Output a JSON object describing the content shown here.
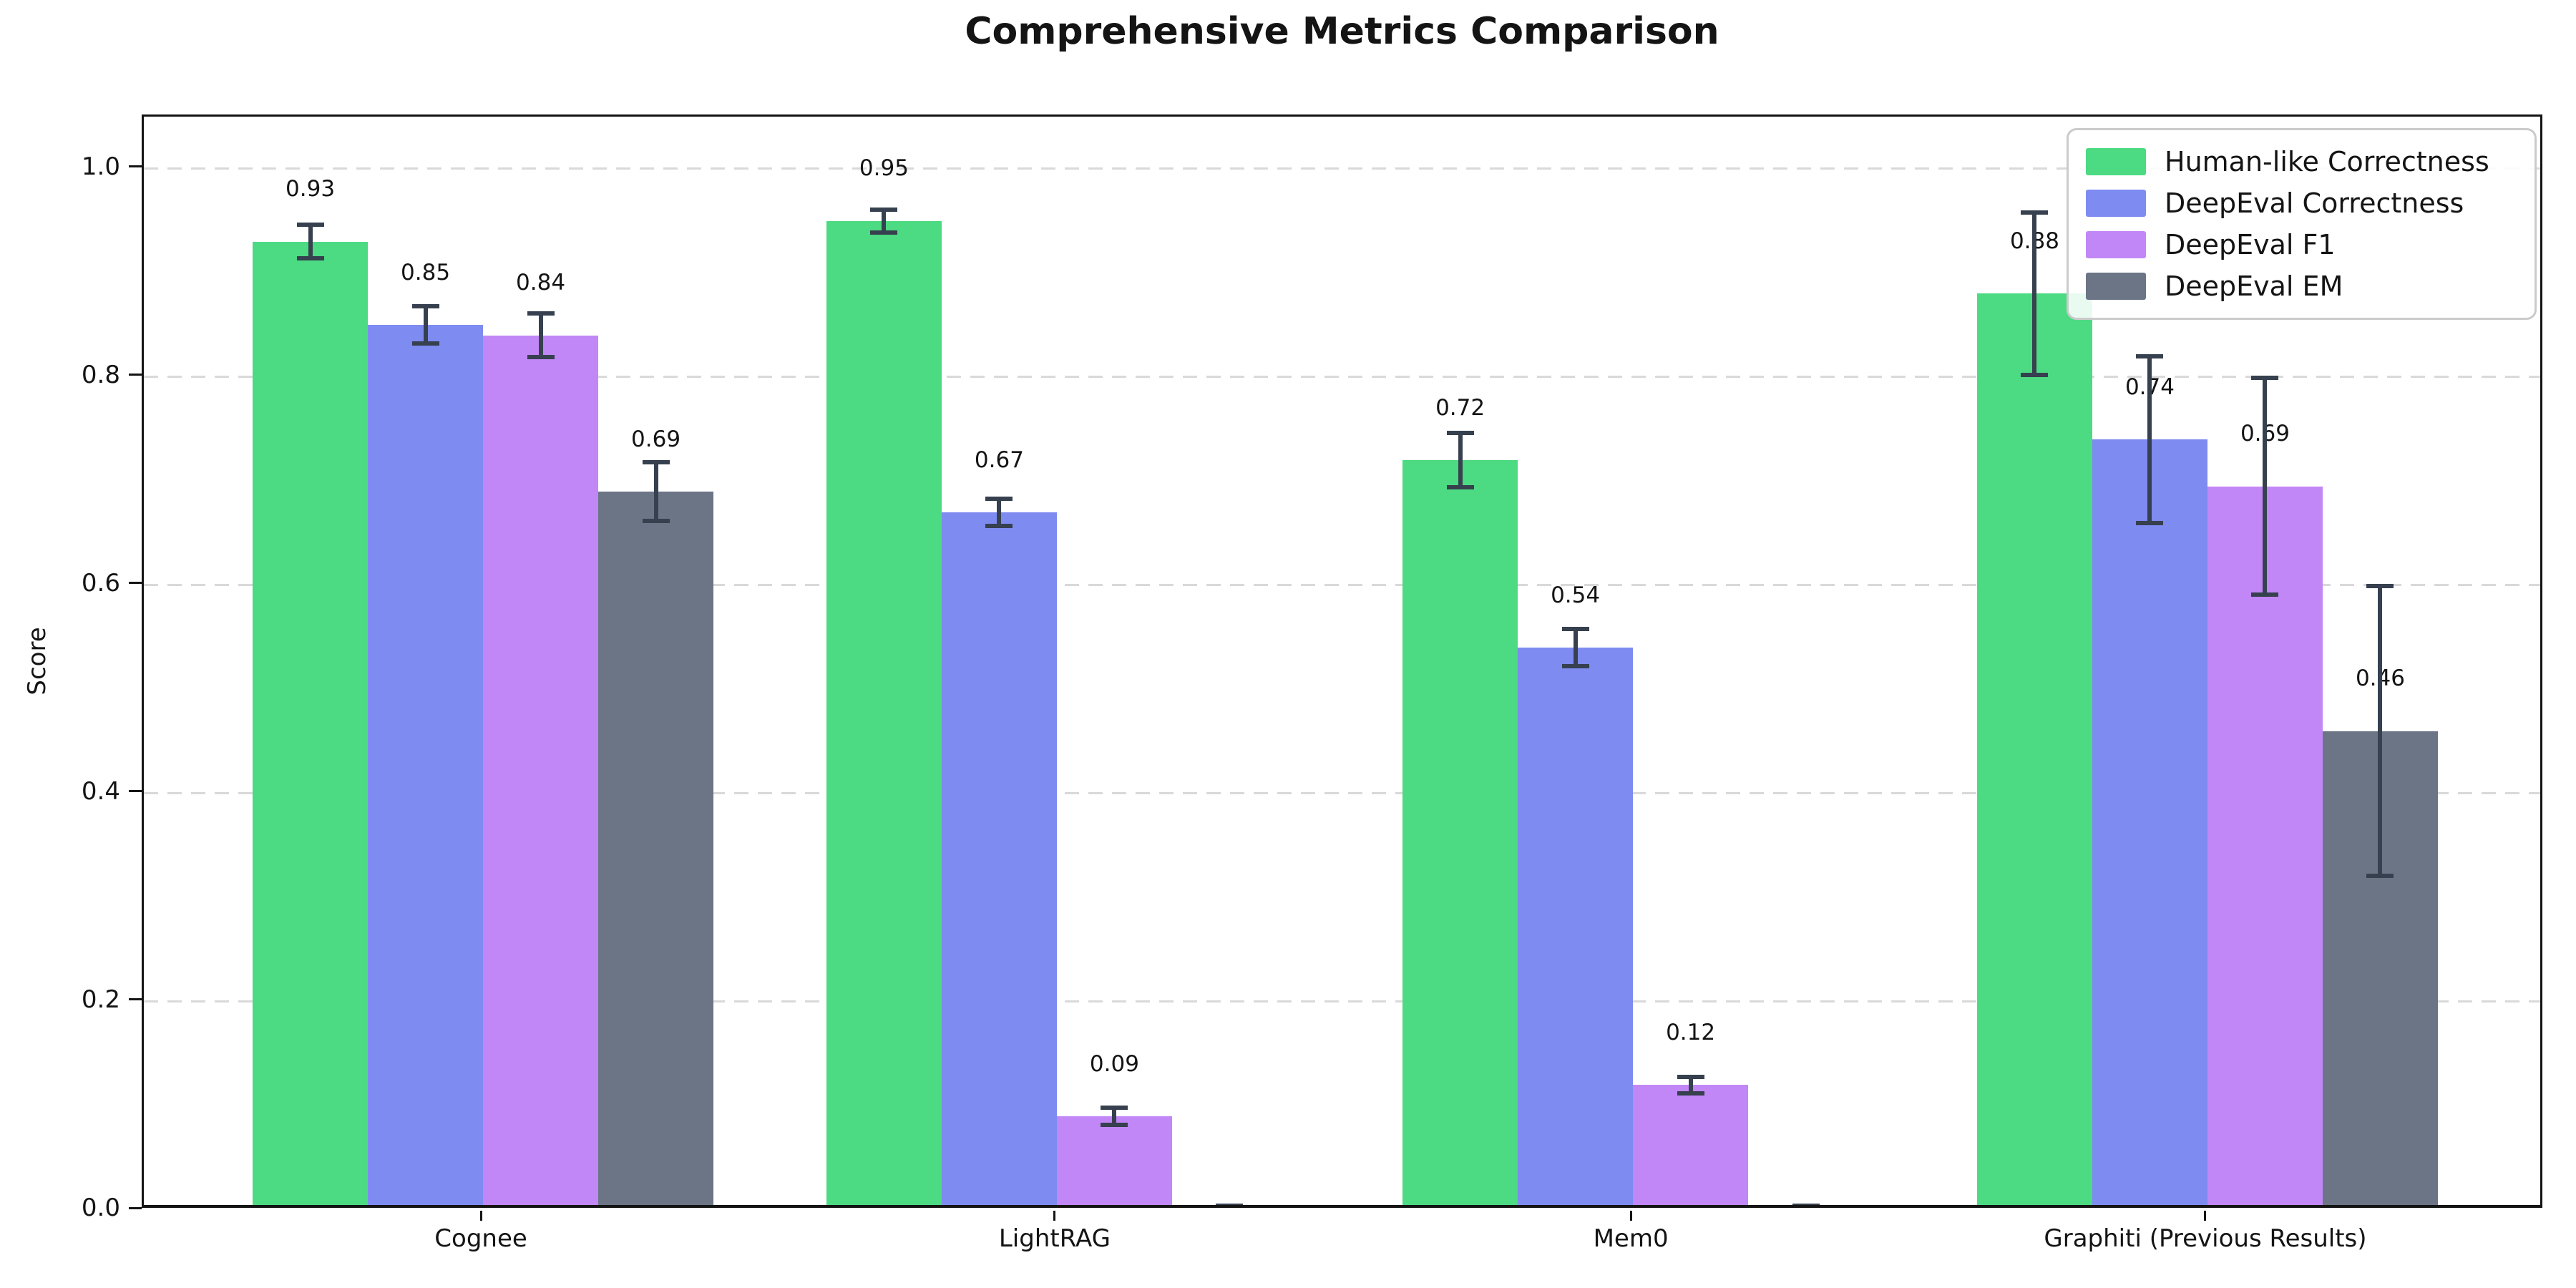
{
  "chart_data": {
    "type": "bar",
    "title": "Comprehensive Metrics Comparison",
    "xlabel": "",
    "ylabel": "Score",
    "ylim": [
      0,
      1.05
    ],
    "yticks": [
      "0.0",
      "0.2",
      "0.4",
      "0.6",
      "0.8",
      "1.0"
    ],
    "grid": "horizontal-dashed",
    "legend_position": "upper-right",
    "categories": [
      "Cognee",
      "LightRAG",
      "Mem0",
      "Graphiti (Previous Results)"
    ],
    "series": [
      {
        "name": "Human-like Correctness",
        "color": "#4cda82",
        "values": [
          0.93,
          0.95,
          0.72,
          0.88
        ],
        "errors": [
          0.016,
          0.011,
          0.026,
          0.078
        ],
        "labels": [
          "0.93",
          "0.95",
          "0.72",
          "0.88"
        ]
      },
      {
        "name": "DeepEval Correctness",
        "color": "#7e8bf1",
        "values": [
          0.85,
          0.67,
          0.54,
          0.74
        ],
        "errors": [
          0.018,
          0.013,
          0.018,
          0.08
        ],
        "labels": [
          "0.85",
          "0.67",
          "0.54",
          "0.74"
        ]
      },
      {
        "name": "DeepEval F1",
        "color": "#c287f6",
        "values": [
          0.84,
          0.09,
          0.12,
          0.695
        ],
        "errors": [
          0.021,
          0.008,
          0.008,
          0.104
        ],
        "labels": [
          "0.84",
          "0.09",
          "0.12",
          "0.69"
        ]
      },
      {
        "name": "DeepEval EM",
        "color": "#6b7586",
        "values": [
          0.69,
          0.0,
          0.0,
          0.46
        ],
        "errors": [
          0.028,
          0.004,
          0.004,
          0.139
        ],
        "labels": [
          "0.69",
          "",
          "",
          "0.46"
        ]
      }
    ],
    "error_bar_color": "#36404f",
    "grid_color": "#d9d9d9"
  }
}
